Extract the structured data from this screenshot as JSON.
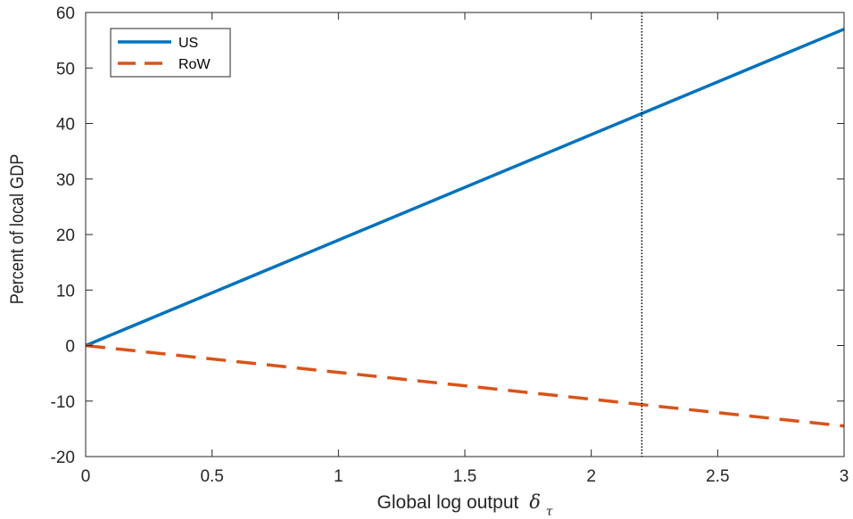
{
  "chart_data": {
    "type": "line",
    "xlabel": "Global log output",
    "xlabel_symbol": "δ",
    "xlabel_subscript": "τ",
    "ylabel": "Percent of local GDP",
    "xlim": [
      0,
      3
    ],
    "ylim": [
      -20,
      60
    ],
    "xticks": [
      0,
      0.5,
      1,
      1.5,
      2,
      2.5,
      3
    ],
    "xtick_labels": [
      "0",
      "0.5",
      "1",
      "1.5",
      "2",
      "2.5",
      "3"
    ],
    "yticks": [
      -20,
      -10,
      0,
      10,
      20,
      30,
      40,
      50,
      60
    ],
    "ytick_labels": [
      "-20",
      "-10",
      "0",
      "10",
      "20",
      "30",
      "40",
      "50",
      "60"
    ],
    "grid": false,
    "legend_position": "top-left",
    "vline": {
      "x": 2.2,
      "style": "dotted",
      "color": "#000000"
    },
    "series": [
      {
        "name": "US",
        "color": "#0072BD",
        "style": "solid",
        "x": [
          0,
          3
        ],
        "y": [
          0,
          57
        ]
      },
      {
        "name": "RoW",
        "color": "#D95319",
        "style": "dashed",
        "x": [
          0,
          3
        ],
        "y": [
          0,
          -14.5
        ]
      }
    ]
  }
}
